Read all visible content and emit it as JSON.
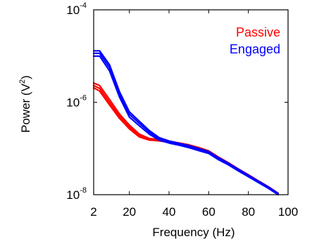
{
  "chart_data": {
    "type": "line",
    "title": "",
    "xlabel": "Frequency (Hz)",
    "ylabel_base": "Power (V",
    "ylabel_sup": "2",
    "ylabel_close": ")",
    "xlim": [
      2,
      100
    ],
    "ylim": [
      1e-08,
      0.0001
    ],
    "yscale": "log",
    "grid": false,
    "legend_position": "top-right",
    "x_ticks": [
      {
        "value": 2,
        "label": "2"
      },
      {
        "value": 20,
        "label": "20"
      },
      {
        "value": 40,
        "label": "40"
      },
      {
        "value": 60,
        "label": "60"
      },
      {
        "value": 80,
        "label": "80"
      },
      {
        "value": 100,
        "label": "100"
      }
    ],
    "y_ticks": [
      {
        "value": 0.0001,
        "base": "10",
        "exp": "-4"
      },
      {
        "value": 1e-06,
        "base": "10",
        "exp": "-6"
      },
      {
        "value": 1e-08,
        "base": "10",
        "exp": "-8"
      }
    ],
    "series": [
      {
        "name": "Passive",
        "color": "#ff0000",
        "band": "upper",
        "x": [
          2,
          5,
          10,
          15,
          20,
          25,
          30,
          35,
          40,
          45,
          50,
          55,
          60,
          65,
          70,
          75,
          80,
          85,
          90,
          95
        ],
        "y": [
          2.6e-06,
          2.3e-06,
          1.15e-06,
          5.6e-07,
          3.2e-07,
          2.05e-07,
          1.65e-07,
          1.55e-07,
          1.44e-07,
          1.32e-07,
          1.2e-07,
          1.05e-07,
          8.9e-08,
          6.5e-08,
          4.9e-08,
          3.6e-08,
          2.7e-08,
          2e-08,
          1.5e-08,
          1.08e-08
        ]
      },
      {
        "name": "",
        "color": "#ff0000",
        "band": "middle",
        "x": [
          2,
          5,
          10,
          15,
          20,
          25,
          30,
          35,
          40,
          45,
          50,
          55,
          60,
          65,
          70,
          75,
          80,
          85,
          90,
          95
        ],
        "y": [
          2.3e-06,
          2e-06,
          1e-06,
          5e-07,
          2.9e-07,
          1.9e-07,
          1.58e-07,
          1.5e-07,
          1.4e-07,
          1.28e-07,
          1.16e-07,
          1.01e-07,
          8.5e-08,
          6.2e-08,
          4.7e-08,
          3.45e-08,
          2.6e-08,
          1.93e-08,
          1.45e-08,
          1.04e-08
        ]
      },
      {
        "name": "",
        "color": "#ff0000",
        "band": "lower",
        "x": [
          2,
          5,
          10,
          15,
          20,
          25,
          30,
          35,
          40,
          45,
          50,
          55,
          60,
          65,
          70,
          75,
          80,
          85,
          90,
          95
        ],
        "y": [
          2.05e-06,
          1.75e-06,
          8.8e-07,
          4.5e-07,
          2.65e-07,
          1.78e-07,
          1.52e-07,
          1.46e-07,
          1.36e-07,
          1.24e-07,
          1.12e-07,
          9.7e-08,
          8.1e-08,
          5.9e-08,
          4.5e-08,
          3.3e-08,
          2.5e-08,
          1.86e-08,
          1.4e-08,
          1e-08
        ]
      },
      {
        "name": "Engaged",
        "color": "#0000ff",
        "band": "upper",
        "x": [
          2,
          5,
          10,
          15,
          20,
          25,
          30,
          35,
          40,
          45,
          50,
          55,
          60,
          65,
          70,
          75,
          80,
          85,
          90,
          95
        ],
        "y": [
          1.3e-05,
          1.3e-05,
          6.5e-06,
          1.7e-06,
          6.2e-07,
          3.9e-07,
          2.45e-07,
          1.72e-07,
          1.45e-07,
          1.3e-07,
          1.16e-07,
          1e-07,
          8.6e-08,
          6.3e-08,
          4.8e-08,
          3.55e-08,
          2.65e-08,
          1.97e-08,
          1.48e-08,
          1.06e-08
        ]
      },
      {
        "name": "",
        "color": "#0000ff",
        "band": "middle",
        "x": [
          2,
          5,
          10,
          15,
          20,
          25,
          30,
          35,
          40,
          45,
          50,
          55,
          60,
          65,
          70,
          75,
          80,
          85,
          90,
          95
        ],
        "y": [
          1.15e-05,
          1.15e-05,
          5.6e-06,
          1.5e-06,
          5.5e-07,
          3.5e-07,
          2.25e-07,
          1.62e-07,
          1.38e-07,
          1.24e-07,
          1.1e-07,
          9.5e-08,
          8.2e-08,
          6e-08,
          4.6e-08,
          3.4e-08,
          2.55e-08,
          1.9e-08,
          1.43e-08,
          1.03e-08
        ]
      },
      {
        "name": "",
        "color": "#0000ff",
        "band": "lower",
        "x": [
          2,
          5,
          10,
          15,
          20,
          25,
          30,
          35,
          40,
          45,
          50,
          55,
          60,
          65,
          70,
          75,
          80,
          85,
          90,
          95
        ],
        "y": [
          1e-05,
          1e-05,
          4.8e-06,
          1.3e-06,
          4.8e-07,
          3.1e-07,
          2.05e-07,
          1.52e-07,
          1.31e-07,
          1.18e-07,
          1.04e-07,
          9e-08,
          7.8e-08,
          5.7e-08,
          4.4e-08,
          3.25e-08,
          2.45e-08,
          1.83e-08,
          1.38e-08,
          1e-08
        ]
      }
    ]
  }
}
